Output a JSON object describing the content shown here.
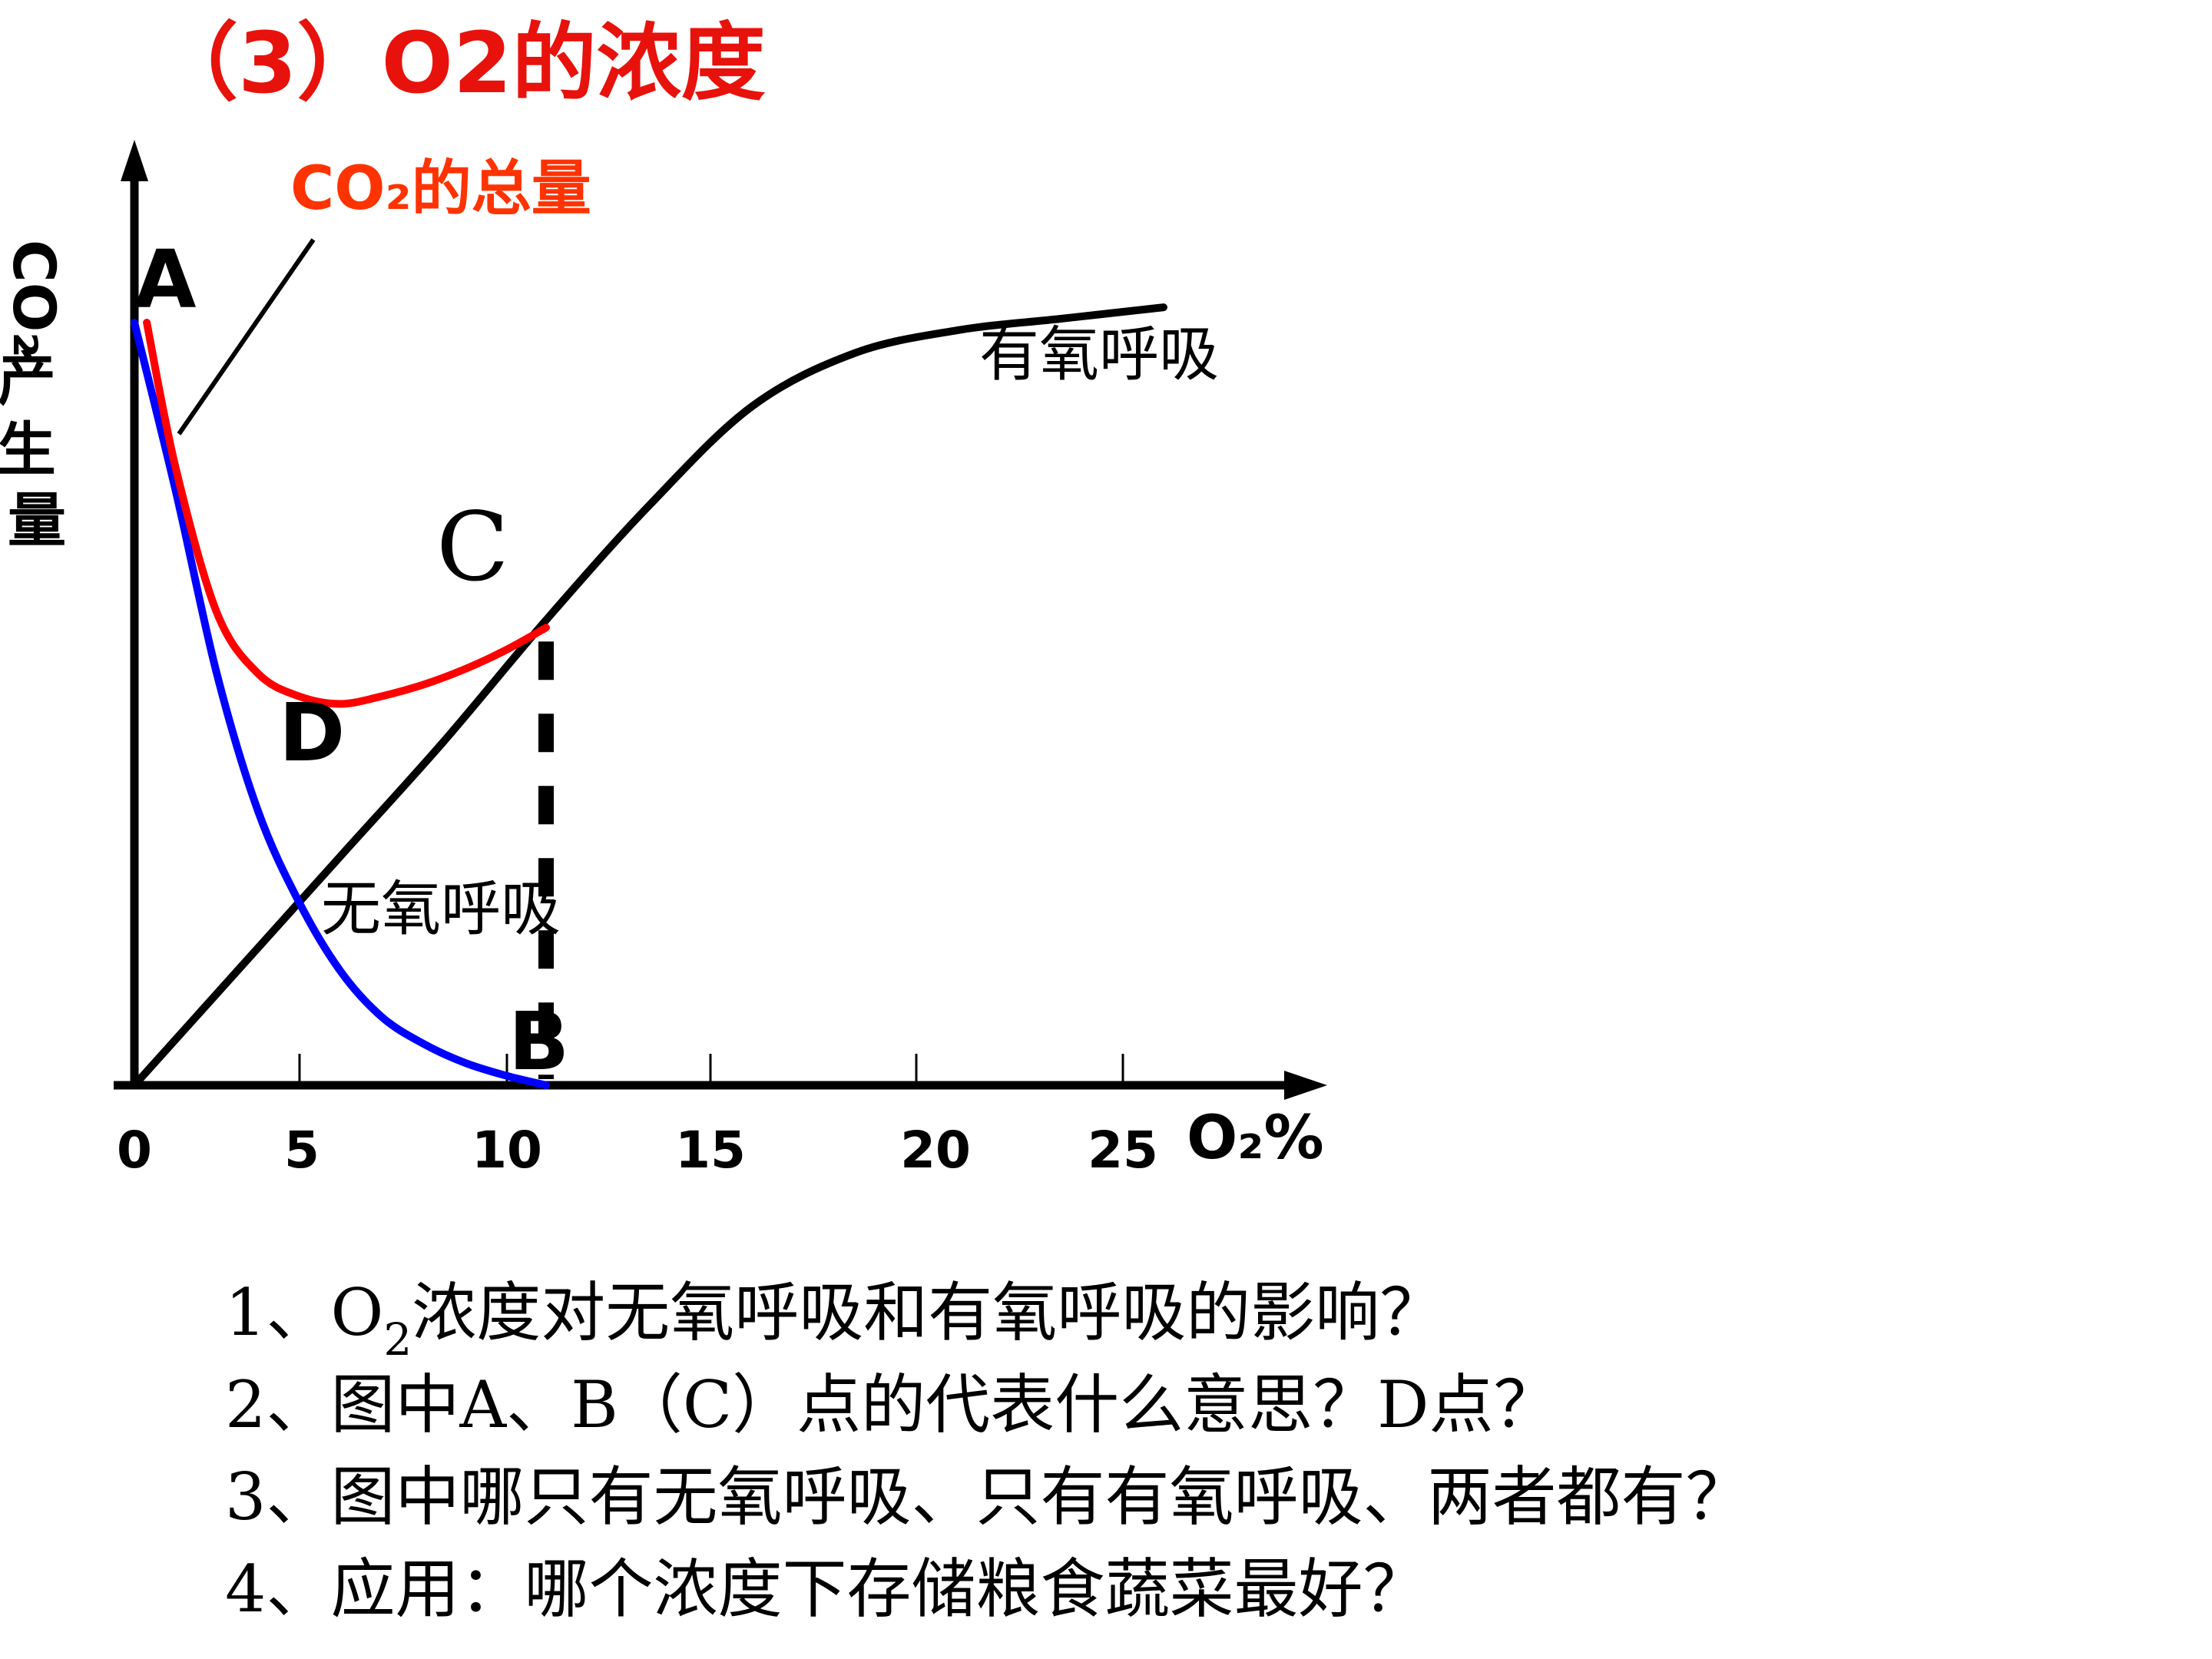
{
  "heading": "（3）O2的浓度",
  "chart_data": {
    "type": "line",
    "xlabel": "O₂%",
    "ylabel": "CO₂产生量",
    "x_ticks": [
      "0",
      "5",
      "10",
      "15",
      "20",
      "25"
    ],
    "xlim": [
      0,
      28
    ],
    "ylim": [
      0,
      100
    ],
    "series": [
      {
        "name": "CO₂的总量",
        "color": "#ff0000",
        "x": [
          0.3,
          1,
          2,
          3,
          4,
          5,
          6,
          7,
          8,
          9,
          10
        ],
        "y": [
          100,
          81,
          62,
          54,
          51,
          50,
          51,
          52.5,
          54.5,
          57,
          60
        ]
      },
      {
        "name": "有氧呼吸",
        "color": "#000000",
        "x": [
          0,
          2.5,
          5,
          7.5,
          10,
          12.5,
          15,
          17.5,
          20,
          22.5,
          25
        ],
        "y": [
          0,
          15,
          30,
          45,
          61,
          76,
          89,
          96,
          99,
          100.5,
          102
        ]
      },
      {
        "name": "无氧呼吸",
        "color": "#0000ff",
        "x": [
          0,
          1,
          2,
          3,
          4,
          5,
          6,
          7,
          8,
          9,
          10
        ],
        "y": [
          100,
          78,
          54,
          36,
          24,
          15,
          9,
          5.5,
          3,
          1.3,
          0
        ]
      }
    ],
    "points": [
      {
        "label": "A",
        "x": 0,
        "y": 100
      },
      {
        "label": "B",
        "x": 10,
        "y": 0
      },
      {
        "label": "C",
        "x": 10,
        "y": 60
      },
      {
        "label": "D",
        "x": 5,
        "y": 50
      }
    ],
    "dashed_line": {
      "x": 10,
      "from_y": 0,
      "to_y": 60
    }
  },
  "questions": [
    {
      "prefix": "1、O",
      "sub": "2",
      "rest": "浓度对无氧呼吸和有氧呼吸的影响？"
    },
    {
      "text": "2、图中A、B（C）点的代表什么意思？D点？"
    },
    {
      "text": "3、图中哪只有无氧呼吸、只有有氧呼吸、两者都有？"
    },
    {
      "text": "4、应用：哪个浓度下存储粮食蔬菜最好？"
    }
  ]
}
